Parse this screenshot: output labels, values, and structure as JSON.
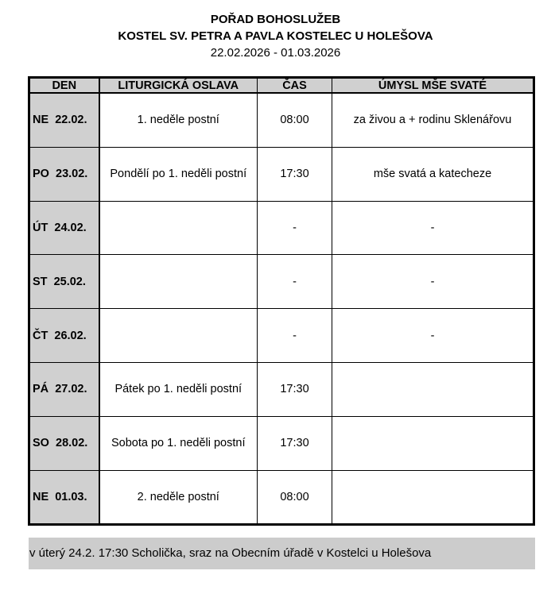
{
  "header": {
    "title": "POŘAD BOHOSLUŽEB",
    "subtitle": "KOSTEL SV. PETRA A PAVLA KOSTELEC U HOLEŠOVA",
    "date_range": "22.02.2026 - 01.03.2026"
  },
  "table": {
    "columns": [
      "DEN",
      "LITURGICKÁ OSLAVA",
      "ČAS",
      "ÚMYSL MŠE SVATÉ"
    ],
    "rows": [
      {
        "day": "NE  22.02.",
        "celebration": "1. neděle postní",
        "time": "08:00",
        "intention": "za živou a + rodinu Sklenářovu"
      },
      {
        "day": "PO  23.02.",
        "celebration": "Pondělí po 1. neděli postní",
        "time": "17:30",
        "intention": "mše svatá a katecheze"
      },
      {
        "day": "ÚT  24.02.",
        "celebration": "",
        "time": "-",
        "intention": "-"
      },
      {
        "day": "ST  25.02.",
        "celebration": "",
        "time": "-",
        "intention": "-"
      },
      {
        "day": "ČT  26.02.",
        "celebration": "",
        "time": "-",
        "intention": "-"
      },
      {
        "day": "PÁ  27.02.",
        "celebration": "Pátek po 1. neděli postní",
        "time": "17:30",
        "intention": ""
      },
      {
        "day": "SO  28.02.",
        "celebration": "Sobota po 1. neděli postní",
        "time": "17:30",
        "intention": ""
      },
      {
        "day": "NE  01.03.",
        "celebration": "2. neděle postní",
        "time": "08:00",
        "intention": ""
      }
    ]
  },
  "note": "v úterý 24.2. 17:30 Scholička, sraz na Obecním úřadě v Kostelci u Holešova"
}
